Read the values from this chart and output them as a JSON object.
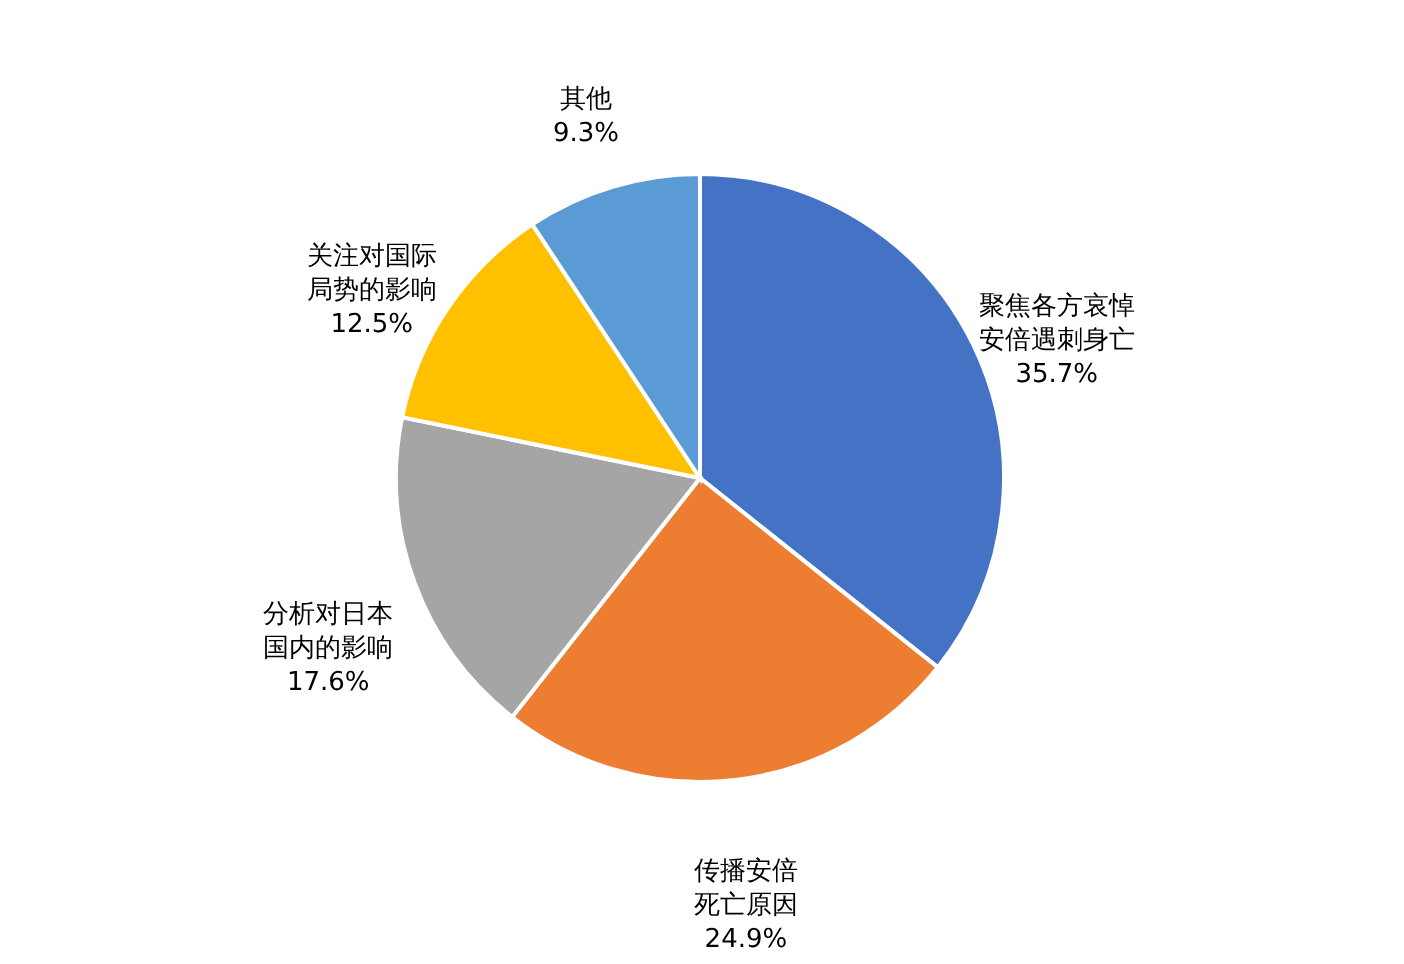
{
  "chart_data": {
    "type": "pie",
    "categories": [
      "聚焦各方哀悼安倍遇刺身亡",
      "传播安倍死亡原因",
      "分析对日本国内的影响",
      "关注对国际局势的影响",
      "其他"
    ],
    "values": [
      35.7,
      24.9,
      17.6,
      12.5,
      9.3
    ],
    "value_labels": [
      "35.7%",
      "24.9%",
      "17.6%",
      "12.5%",
      "9.3%"
    ],
    "colors": [
      "#4472c4",
      "#ed7d31",
      "#a5a5a5",
      "#ffc000",
      "#5b9bd5"
    ],
    "legend": false
  }
}
